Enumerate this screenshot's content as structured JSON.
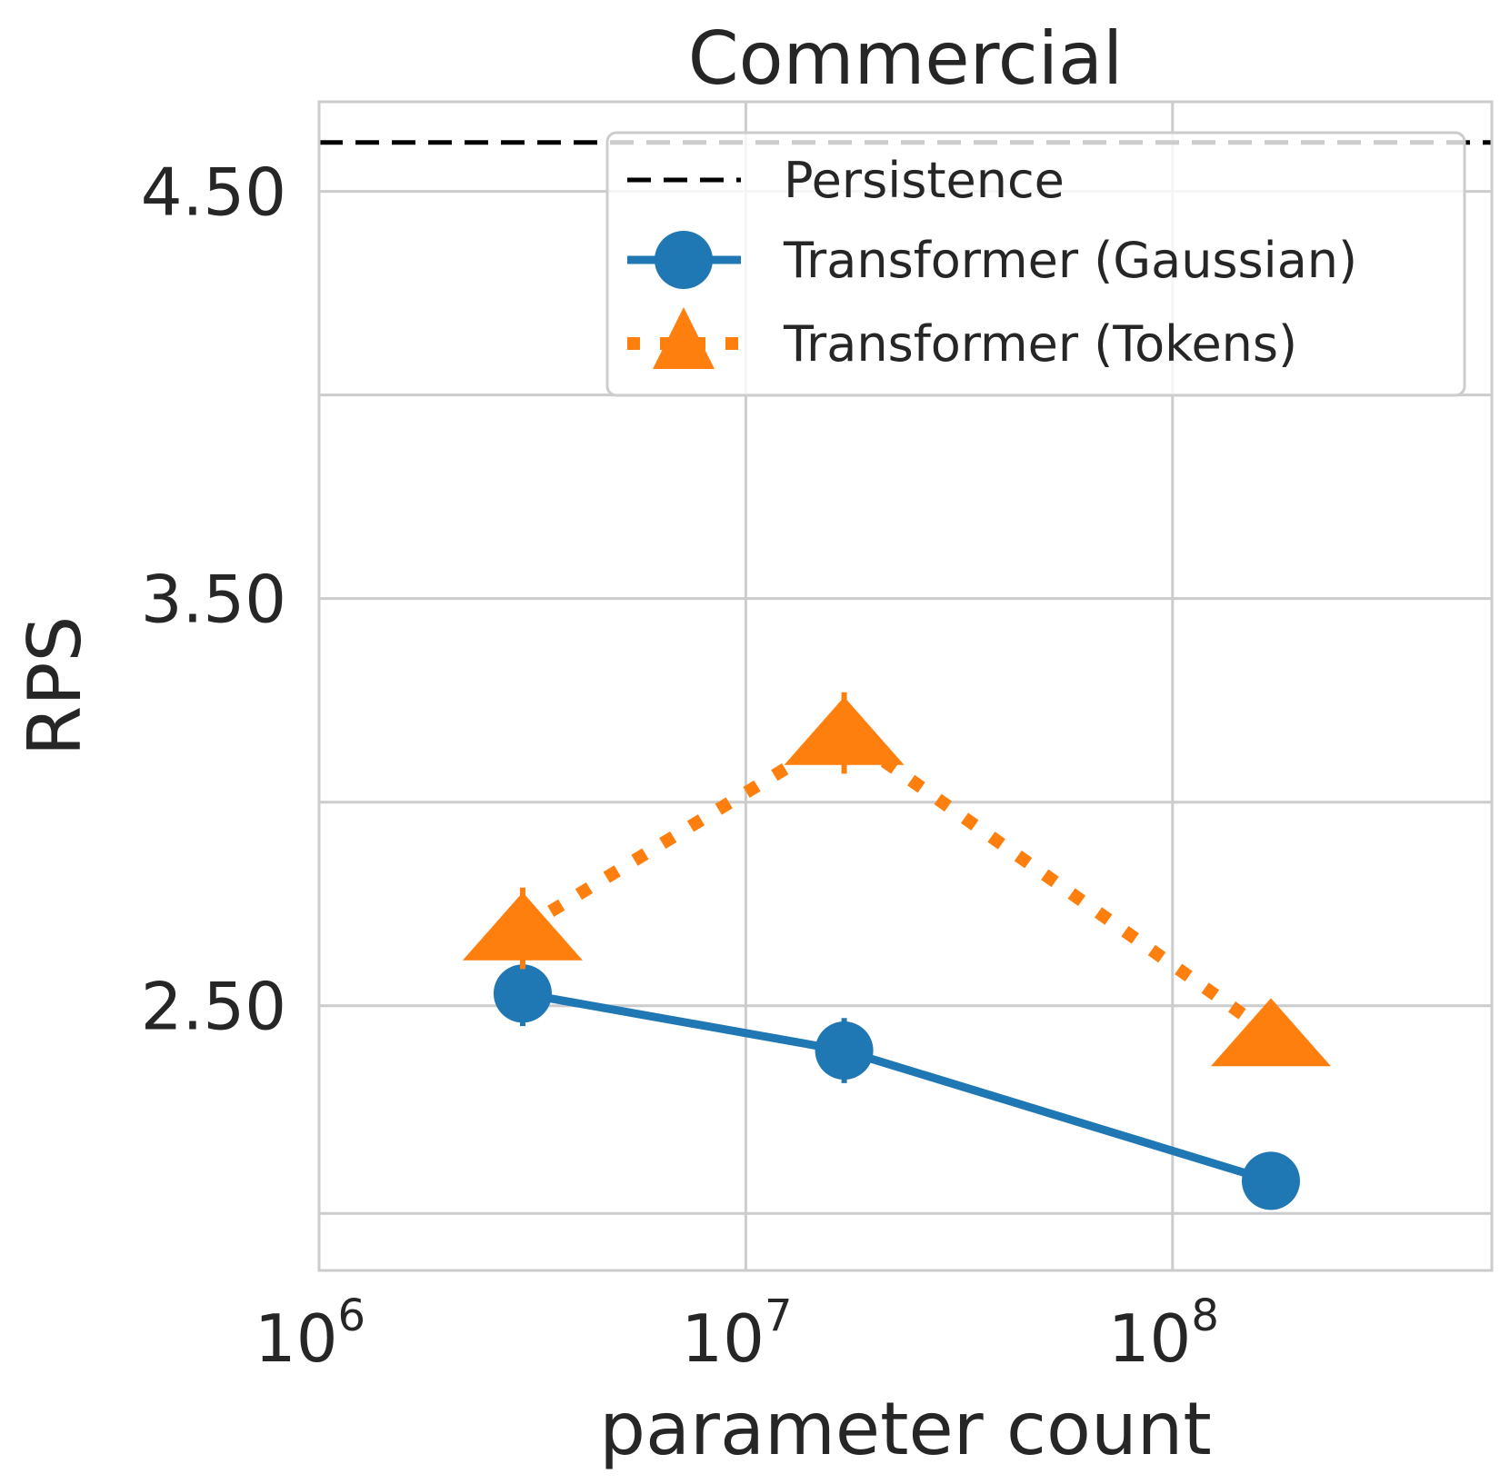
{
  "chart_data": {
    "type": "line",
    "title": "Commercial",
    "xlabel": "parameter count",
    "ylabel": "RPS",
    "x_scale": "log",
    "xlim": [
      1000000,
      560000000
    ],
    "ylim": [
      1.85,
      4.72
    ],
    "x_ticks": [
      {
        "value": 1000000,
        "base": "10",
        "exp": "6"
      },
      {
        "value": 10000000,
        "base": "10",
        "exp": "7"
      },
      {
        "value": 100000000,
        "base": "10",
        "exp": "8"
      }
    ],
    "y_ticks": [
      {
        "value": 1.99,
        "label": ""
      },
      {
        "value": 2.5,
        "label": "2.50"
      },
      {
        "value": 3.0,
        "label": ""
      },
      {
        "value": 3.5,
        "label": "3.50"
      },
      {
        "value": 4.0,
        "label": ""
      },
      {
        "value": 4.5,
        "label": "4.50"
      }
    ],
    "grid": true,
    "legend_position": "top-right",
    "baseline": {
      "name": "Persistence",
      "value": 4.62,
      "color": "#000000"
    },
    "series": [
      {
        "name": "Transformer (Gaussian)",
        "color": "#1f77b4",
        "marker": "circle",
        "line_style": "solid",
        "x": [
          3000000,
          17000000,
          170000000
        ],
        "y": [
          2.53,
          2.39,
          2.07
        ],
        "err": [
          0.08,
          0.08,
          0.07
        ]
      },
      {
        "name": "Transformer (Tokens)",
        "color": "#ff7f0e",
        "marker": "triangle",
        "line_style": "dotted",
        "x": [
          3000000,
          17000000,
          170000000
        ],
        "y": [
          2.69,
          3.17,
          2.43
        ],
        "err": [
          0.1,
          0.1,
          0.05
        ]
      }
    ]
  }
}
